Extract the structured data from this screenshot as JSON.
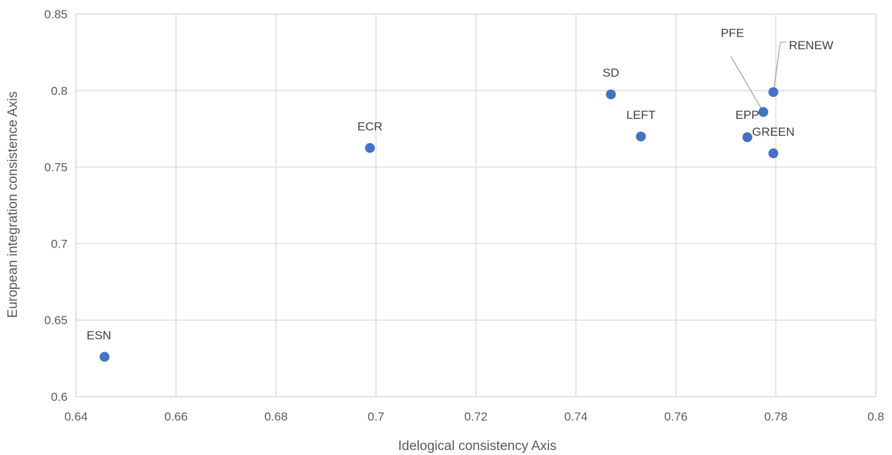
{
  "chart_data": {
    "type": "scatter",
    "title": "",
    "xlabel": "Idelogical consistency Axis",
    "ylabel": "European integration consistence Axis",
    "xlim": [
      0.64,
      0.8
    ],
    "ylim": [
      0.6,
      0.85
    ],
    "x_ticks": [
      "0.64",
      "0.66",
      "0.68",
      "0.7",
      "0.72",
      "0.74",
      "0.76",
      "0.78",
      "0.8"
    ],
    "y_ticks": [
      "0.6",
      "0.65",
      "0.7",
      "0.75",
      "0.8",
      "0.85"
    ],
    "grid": true,
    "legend": "none",
    "marker_color": "#4472c4",
    "points": [
      {
        "label": "ESN",
        "x": 0.6457,
        "y": 0.626
      },
      {
        "label": "ECR",
        "x": 0.6988,
        "y": 0.7625
      },
      {
        "label": "SD",
        "x": 0.747,
        "y": 0.7975
      },
      {
        "label": "LEFT",
        "x": 0.753,
        "y": 0.77
      },
      {
        "label": "EPP",
        "x": 0.7743,
        "y": 0.7695
      },
      {
        "label": "PFE",
        "x": 0.7775,
        "y": 0.786
      },
      {
        "label": "RENEW",
        "x": 0.7795,
        "y": 0.799
      },
      {
        "label": "GREEN",
        "x": 0.7795,
        "y": 0.759
      }
    ]
  }
}
